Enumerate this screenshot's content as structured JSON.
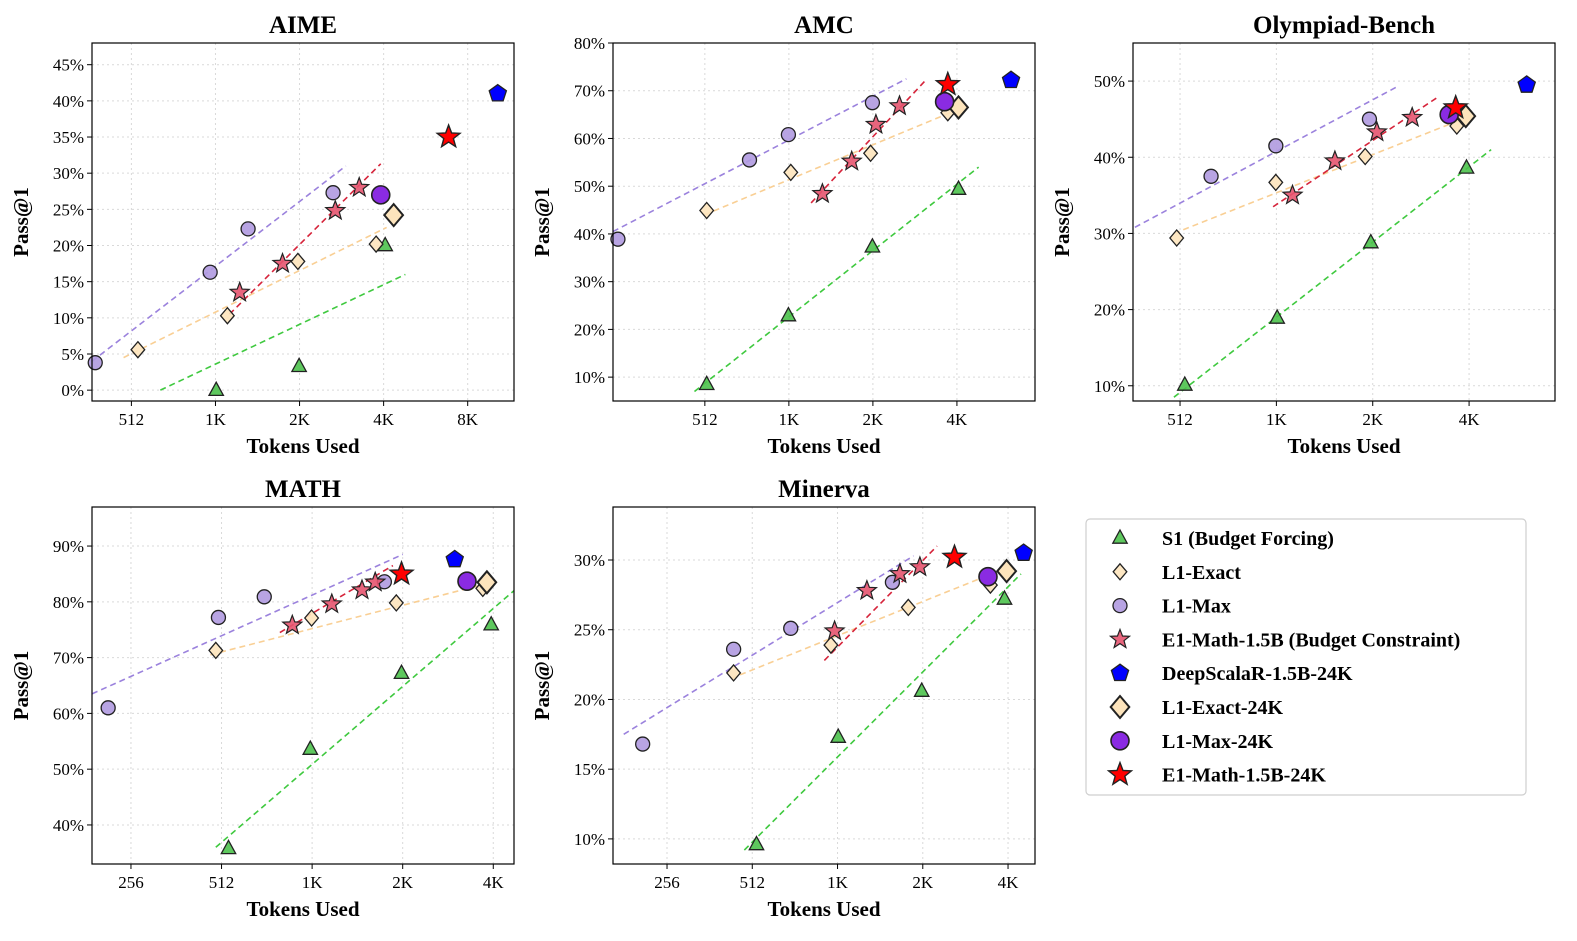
{
  "figure": {
    "legend": {
      "placement": "lower-right",
      "entries": [
        {
          "label": "S1 (Budget Forcing)",
          "marker": "triangle",
          "color": "#4dc24d"
        },
        {
          "label": "L1-Exact",
          "marker": "diamond",
          "color": "#fde4bc"
        },
        {
          "label": "L1-Max",
          "marker": "circle",
          "color": "#b09ae0"
        },
        {
          "label": "E1-Math-1.5B (Budget Constraint)",
          "marker": "star",
          "color": "#e5546f"
        },
        {
          "label": "DeepScalaR-1.5B-24K",
          "marker": "pentagon",
          "color": "#0000ff"
        },
        {
          "label": "L1-Exact-24K",
          "marker": "diamond-large",
          "color": "#fde4bc"
        },
        {
          "label": "L1-Max-24K",
          "marker": "circle-large",
          "color": "#8a2be2"
        },
        {
          "label": "E1-Math-1.5B-24K",
          "marker": "star-large",
          "color": "#ff0000"
        }
      ]
    },
    "colors": {
      "s1": "#4dc24d",
      "s1_line": "#3fc93f",
      "exact": "#fde4bc",
      "exact_line": "#f9cf94",
      "max": "#b09ae0",
      "max_line": "#9b82dd",
      "e1": "#e5546f",
      "e1_line": "#d6243b",
      "deep": "#0000ff",
      "max24": "#8a2be2",
      "e124": "#ff0000"
    }
  },
  "chart_data": [
    {
      "type": "scatter",
      "title": "AIME",
      "xlabel": "Tokens Used",
      "ylabel": "Pass@1",
      "xscale": "log2",
      "xlim": [
        370,
        12000
      ],
      "ylim": [
        -1.5,
        48
      ],
      "xticks": [
        512,
        1024,
        2048,
        4096,
        8192
      ],
      "xticklabels": [
        "512",
        "1K",
        "2K",
        "4K",
        "8K"
      ],
      "yticks": [
        0,
        5,
        10,
        15,
        20,
        25,
        30,
        35,
        40,
        45
      ],
      "yticklabels": [
        "0%",
        "5%",
        "10%",
        "15%",
        "20%",
        "25%",
        "30%",
        "35%",
        "40%",
        "45%"
      ],
      "grid": true,
      "series": [
        {
          "name": "S1 (Budget Forcing)",
          "marker": "triangle",
          "x": [
            1030,
            2040,
            4150
          ],
          "y": [
            0,
            3.3,
            20
          ],
          "fit": [
            [
              650,
              0
            ],
            [
              4900,
              16
            ]
          ]
        },
        {
          "name": "L1-Exact",
          "marker": "diamond",
          "x": [
            540,
            1130,
            2020,
            3850
          ],
          "y": [
            5.6,
            10.3,
            17.8,
            20.2
          ],
          "fit": [
            [
              480,
              4.5
            ],
            [
              4200,
              22.5
            ]
          ]
        },
        {
          "name": "L1-Max",
          "marker": "circle",
          "x": [
            380,
            980,
            1340,
            2700
          ],
          "y": [
            3.8,
            16.3,
            22.3,
            27.3
          ],
          "fit": [
            [
              370,
              4
            ],
            [
              3000,
              31
            ]
          ]
        },
        {
          "name": "E1-Math-1.5B (Budget Constraint)",
          "marker": "star",
          "x": [
            1250,
            1780,
            2750,
            3350
          ],
          "y": [
            13.5,
            17.5,
            24.8,
            28
          ],
          "fit": [
            [
              1150,
              10.5
            ],
            [
              4000,
              31.3
            ]
          ]
        },
        {
          "name": "DeepScalaR-1.5B-24K",
          "marker": "pentagon",
          "x": [
            10500
          ],
          "y": [
            41
          ]
        },
        {
          "name": "L1-Exact-24K",
          "marker": "diamond-large",
          "x": [
            4450
          ],
          "y": [
            24.2
          ]
        },
        {
          "name": "L1-Max-24K",
          "marker": "circle-large",
          "x": [
            4000
          ],
          "y": [
            27
          ]
        },
        {
          "name": "E1-Math-1.5B-24K",
          "marker": "star-large",
          "x": [
            7000
          ],
          "y": [
            35
          ]
        }
      ]
    },
    {
      "type": "scatter",
      "title": "AMC",
      "xlabel": "Tokens Used",
      "ylabel": "Pass@1",
      "xscale": "log2",
      "xlim": [
        240,
        7800
      ],
      "ylim": [
        5,
        80
      ],
      "xticks": [
        512,
        1024,
        2048,
        4096
      ],
      "xticklabels": [
        "512",
        "1K",
        "2K",
        "4K"
      ],
      "yticks": [
        10,
        20,
        30,
        40,
        50,
        60,
        70,
        80
      ],
      "yticklabels": [
        "10%",
        "20%",
        "30%",
        "40%",
        "50%",
        "60%",
        "70%",
        "80%"
      ],
      "grid": true,
      "series": [
        {
          "name": "S1 (Budget Forcing)",
          "marker": "triangle",
          "x": [
            520,
            1020,
            2040,
            4150
          ],
          "y": [
            8.5,
            22.9,
            37.3,
            49.4
          ],
          "fit": [
            [
              470,
              7
            ],
            [
              4900,
              54
            ]
          ]
        },
        {
          "name": "L1-Exact",
          "marker": "diamond",
          "x": [
            520,
            1040,
            2010,
            3800
          ],
          "y": [
            44.9,
            52.9,
            56.9,
            65.4
          ],
          "fit": [
            [
              510,
              44
            ],
            [
              4100,
              66
            ]
          ]
        },
        {
          "name": "L1-Max",
          "marker": "circle",
          "x": [
            250,
            740,
            1020,
            2040
          ],
          "y": [
            38.9,
            55.5,
            60.8,
            67.5
          ],
          "fit": [
            [
              240,
              40.5
            ],
            [
              2700,
              72.5
            ]
          ]
        },
        {
          "name": "E1-Math-1.5B (Budget Constraint)",
          "marker": "star",
          "x": [
            1350,
            1720,
            2100,
            2550
          ],
          "y": [
            48.4,
            55.2,
            62.9,
            66.8
          ],
          "fit": [
            [
              1230,
              46.5
            ],
            [
              3200,
              72.5
            ]
          ]
        },
        {
          "name": "DeepScalaR-1.5B-24K",
          "marker": "pentagon",
          "x": [
            6400
          ],
          "y": [
            72.2
          ]
        },
        {
          "name": "L1-Exact-24K",
          "marker": "diamond-large",
          "x": [
            4150
          ],
          "y": [
            66.5
          ]
        },
        {
          "name": "L1-Max-24K",
          "marker": "circle-large",
          "x": [
            3700
          ],
          "y": [
            67.7
          ]
        },
        {
          "name": "E1-Math-1.5B-24K",
          "marker": "star-large",
          "x": [
            3800
          ],
          "y": [
            71.3
          ]
        }
      ]
    },
    {
      "type": "scatter",
      "title": "Olympiad-Bench",
      "xlabel": "Tokens Used",
      "ylabel": "Pass@1",
      "xscale": "log2",
      "xlim": [
        365,
        7600
      ],
      "ylim": [
        8,
        55
      ],
      "xticks": [
        512,
        1024,
        2048,
        4096
      ],
      "xticklabels": [
        "512",
        "1K",
        "2K",
        "4K"
      ],
      "yticks": [
        10,
        20,
        30,
        40,
        50
      ],
      "yticklabels": [
        "10%",
        "20%",
        "30%",
        "40%",
        "50%"
      ],
      "grid": true,
      "series": [
        {
          "name": "S1 (Budget Forcing)",
          "marker": "triangle",
          "x": [
            530,
            1030,
            2020,
            4020
          ],
          "y": [
            10.1,
            18.9,
            28.8,
            38.6
          ],
          "fit": [
            [
              490,
              8.5
            ],
            [
              4800,
              41
            ]
          ]
        },
        {
          "name": "L1-Exact",
          "marker": "diamond",
          "x": [
            500,
            1020,
            1940,
            3750
          ],
          "y": [
            29.4,
            36.7,
            40.1,
            44.1
          ],
          "fit": [
            [
              490,
              30
            ],
            [
              3900,
              45
            ]
          ]
        },
        {
          "name": "L1-Max",
          "marker": "circle",
          "x": [
            640,
            1020,
            2000
          ],
          "y": [
            37.5,
            41.5,
            45
          ],
          "fit": [
            [
              370,
              30.8
            ],
            [
              2450,
              49.3
            ]
          ]
        },
        {
          "name": "E1-Math-1.5B (Budget Constraint)",
          "marker": "star",
          "x": [
            1150,
            1560,
            2110,
            2720
          ],
          "y": [
            35,
            39.5,
            43.3,
            45.2
          ],
          "fit": [
            [
              1000,
              33.5
            ],
            [
              3300,
              48
            ]
          ]
        },
        {
          "name": "DeepScalaR-1.5B-24K",
          "marker": "pentagon",
          "x": [
            6200
          ],
          "y": [
            49.5
          ]
        },
        {
          "name": "L1-Exact-24K",
          "marker": "diamond-large",
          "x": [
            4000
          ],
          "y": [
            45.4
          ]
        },
        {
          "name": "L1-Max-24K",
          "marker": "circle-large",
          "x": [
            3550
          ],
          "y": [
            45.6
          ]
        },
        {
          "name": "E1-Math-1.5B-24K",
          "marker": "star-large",
          "x": [
            3720
          ],
          "y": [
            46.5
          ]
        }
      ]
    },
    {
      "type": "scatter",
      "title": "MATH",
      "xlabel": "Tokens Used",
      "ylabel": "Pass@1",
      "xscale": "log2",
      "xlim": [
        190,
        4800
      ],
      "ylim": [
        33,
        97
      ],
      "xticks": [
        256,
        512,
        1024,
        2048,
        4096
      ],
      "xticklabels": [
        "256",
        "512",
        "1K",
        "2K",
        "4K"
      ],
      "yticks": [
        40,
        50,
        60,
        70,
        80,
        90
      ],
      "yticklabels": [
        "40%",
        "50%",
        "60%",
        "70%",
        "80%",
        "90%"
      ],
      "grid": true,
      "series": [
        {
          "name": "S1 (Budget Forcing)",
          "marker": "triangle",
          "x": [
            540,
            1010,
            2030,
            4030
          ],
          "y": [
            35.8,
            53.6,
            67.2,
            75.9
          ],
          "fit": [
            [
              490,
              36
            ],
            [
              4800,
              82
            ]
          ]
        },
        {
          "name": "L1-Exact",
          "marker": "diamond",
          "x": [
            490,
            1020,
            1950,
            3780
          ],
          "y": [
            71.3,
            77.1,
            79.8,
            82.4
          ],
          "fit": [
            [
              470,
              70.5
            ],
            [
              4050,
              83.5
            ]
          ]
        },
        {
          "name": "L1-Max",
          "marker": "circle",
          "x": [
            215,
            500,
            710,
            1780
          ],
          "y": [
            61,
            77.2,
            80.9,
            83.6
          ],
          "fit": [
            [
              190,
              63.5
            ],
            [
              2050,
              88.5
            ]
          ]
        },
        {
          "name": "E1-Math-1.5B (Budget Constraint)",
          "marker": "star",
          "x": [
            880,
            1190,
            1500,
            1660
          ],
          "y": [
            75.8,
            79.6,
            82.1,
            83.5
          ],
          "fit": [
            [
              800,
              74.5
            ],
            [
              1900,
              86.5
            ]
          ]
        },
        {
          "name": "DeepScalaR-1.5B-24K",
          "marker": "pentagon",
          "x": [
            3050
          ],
          "y": [
            87.6
          ]
        },
        {
          "name": "L1-Exact-24K",
          "marker": "diamond-large",
          "x": [
            3900
          ],
          "y": [
            83.5
          ]
        },
        {
          "name": "L1-Max-24K",
          "marker": "circle-large",
          "x": [
            3350
          ],
          "y": [
            83.7
          ]
        },
        {
          "name": "E1-Math-1.5B-24K",
          "marker": "star-large",
          "x": [
            2030
          ],
          "y": [
            85
          ]
        }
      ]
    },
    {
      "type": "scatter",
      "title": "Minerva",
      "xlabel": "Tokens Used",
      "ylabel": "Pass@1",
      "xscale": "log2",
      "xlim": [
        165,
        5100
      ],
      "ylim": [
        8.2,
        33.8
      ],
      "xticks": [
        256,
        512,
        1024,
        2048,
        4096
      ],
      "xticklabels": [
        "256",
        "512",
        "1K",
        "2K",
        "4K"
      ],
      "yticks": [
        10,
        15,
        20,
        25,
        30
      ],
      "yticklabels": [
        "10%",
        "15%",
        "20%",
        "25%",
        "30%"
      ],
      "grid": true,
      "series": [
        {
          "name": "S1 (Budget Forcing)",
          "marker": "triangle",
          "x": [
            530,
            1030,
            2030,
            3980
          ],
          "y": [
            9.6,
            17.3,
            20.6,
            27.2
          ],
          "fit": [
            [
              480,
              9.2
            ],
            [
              4550,
              29
            ]
          ]
        },
        {
          "name": "L1-Exact",
          "marker": "diamond",
          "x": [
            440,
            970,
            1820,
            3550
          ],
          "y": [
            21.9,
            23.9,
            26.6,
            28.2
          ],
          "fit": [
            [
              430,
              21.5
            ],
            [
              3900,
              29.3
            ]
          ]
        },
        {
          "name": "L1-Max",
          "marker": "circle",
          "x": [
            210,
            440,
            700,
            1600
          ],
          "y": [
            16.8,
            23.6,
            25.1,
            28.4
          ],
          "fit": [
            [
              180,
              17.5
            ],
            [
              1900,
              30.3
            ]
          ]
        },
        {
          "name": "E1-Math-1.5B (Budget Constraint)",
          "marker": "star",
          "x": [
            1000,
            1300,
            1700,
            2000
          ],
          "y": [
            24.9,
            27.8,
            29,
            29.5
          ],
          "fit": [
            [
              920,
              22.8
            ],
            [
              2300,
              31
            ]
          ]
        },
        {
          "name": "DeepScalaR-1.5B-24K",
          "marker": "pentagon",
          "x": [
            4650
          ],
          "y": [
            30.5
          ]
        },
        {
          "name": "L1-Exact-24K",
          "marker": "diamond-large",
          "x": [
            4050
          ],
          "y": [
            29.2
          ]
        },
        {
          "name": "L1-Max-24K",
          "marker": "circle-large",
          "x": [
            3480
          ],
          "y": [
            28.8
          ]
        },
        {
          "name": "E1-Math-1.5B-24K",
          "marker": "star-large",
          "x": [
            2650
          ],
          "y": [
            30.2
          ]
        }
      ]
    }
  ]
}
